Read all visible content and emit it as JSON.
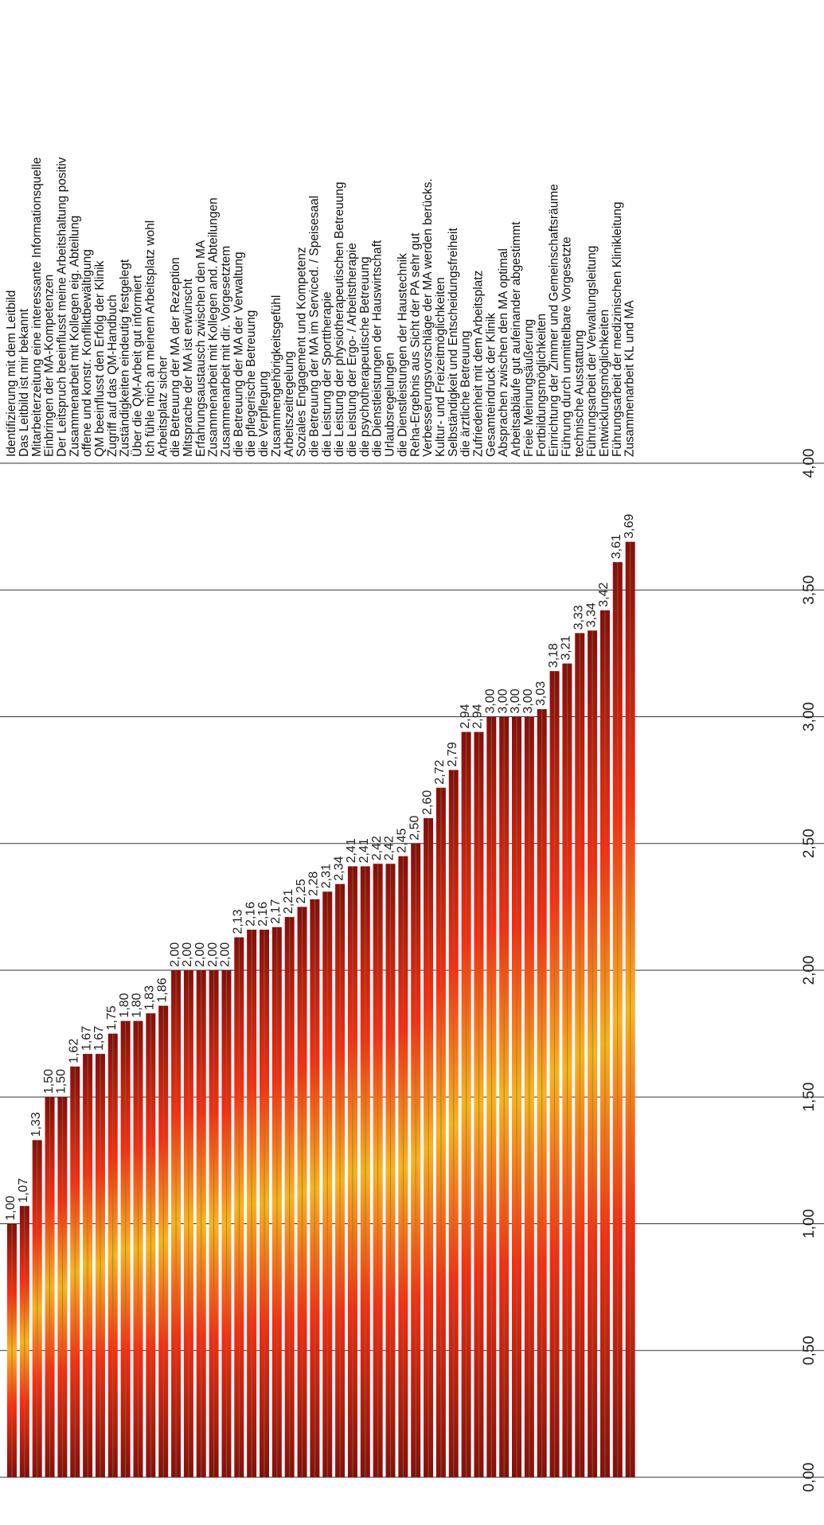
{
  "chart_data": {
    "type": "bar",
    "orientation": "horizontal",
    "xlim": [
      0,
      4
    ],
    "ticks": [
      "0,00",
      "0,50",
      "1,00",
      "1,50",
      "2,00",
      "2,50",
      "3,00",
      "3,50",
      "4,00"
    ],
    "grid": true,
    "categories": [
      "Identifizierung mit dem Leitbild",
      "Das Leitbild ist mir bekannt",
      "Mitarbeiterzeitung eine interessante Informationsquelle",
      "Einbringen der MA-Kompetenzen",
      "Der Leitspruch beeinflusst meine Arbeitshaltung positiv",
      "Zusammenarbeit mit Kollegen eig. Abteilung",
      "offene und konstr. Konfliktbewältigung",
      "QM beeinflusst den Erfolg der Klinik",
      "Zugriff auf das QM-Handbuch",
      "Zuständigkeiten eindeutig festgelegt",
      "Über die QM-Arbeit gut informiert",
      "Ich fühle mich an meinem Arbeitsplatz wohl",
      "Arbeitsplatz sicher",
      "die Betreuung der MA der Rezeption",
      "Mitsprache der MA ist erwünscht",
      "Erfahrungsaustausch zwischen den MA",
      "Zusammenarbeit mit Kollegen and. Abteilungen",
      "Zusammenarbeit mit dir. Vorgesetztem",
      "die Betreuung der MA der Verwaltung",
      "die pflegerische Betreuung",
      "die Verpflegung",
      "Zusammengehörigkeitsgefühl",
      "Arbeitszeitregelung",
      "Soziales Engagement und Kompetenz",
      "die Betreuung der MA im Serviced. / Speisesaal",
      "die Leistung der Sporttherapie",
      "die Leistung der physiotherapeutischen Betreuung",
      "die Leistung der Ergo- / Arbeitstherapie",
      "die psychotherapeutische Betreuung",
      "die Dienstleistungen der Hauswirtschaft",
      "Urlaubsregelungen",
      "die Dienstleistungen der Haustechnik",
      "Reha-Ergebnis aus Sicht der PA sehr gut",
      "Verbesserungsvorschläge der MA werden berücks.",
      "Kultur- und Freizeitmöglichkeiten",
      "Selbständigkeit und Entscheidungsfreiheit",
      "die ärztliche Betreuung",
      "Zufriedenheit mit dem Arbeitsplatz",
      "Gesamteindruck der Klinik",
      "Absprachen zwischen den MA optimal",
      "Arbeitsabläufe gut aufeinander abgestimmt",
      "Freie Meinungsäußerung",
      "Fortbildungsmöglichkeiten",
      "Einrichtung der Zimmer und Gemeinschaftsräume",
      "Führung durch unmittelbare Vorgesetzte",
      "technische Ausstattung",
      "Führungsarbeit der Verwaltungsleitung",
      "Entwicklungsmöglichkeiten",
      "Führungsarbeit der medizinischen Klinikleitung",
      "Zusammenarbeit KL und MA"
    ],
    "values": [
      1.0,
      1.07,
      1.33,
      1.5,
      1.5,
      1.62,
      1.67,
      1.67,
      1.75,
      1.8,
      1.8,
      1.83,
      1.86,
      2.0,
      2.0,
      2.0,
      2.0,
      2.0,
      2.13,
      2.16,
      2.16,
      2.17,
      2.21,
      2.25,
      2.28,
      2.31,
      2.34,
      2.41,
      2.41,
      2.42,
      2.42,
      2.45,
      2.5,
      2.6,
      2.72,
      2.79,
      2.94,
      2.94,
      3.0,
      3.0,
      3.0,
      3.0,
      3.03,
      3.18,
      3.21,
      3.33,
      3.34,
      3.42,
      3.61,
      3.69
    ],
    "value_labels": [
      "1,00",
      "1,07",
      "1,33",
      "1,50",
      "1,50",
      "1,62",
      "1,67",
      "1,67",
      "1,75",
      "1,80",
      "1,80",
      "1,83",
      "1,86",
      "2,00",
      "2,00",
      "2,00",
      "2,00",
      "2,00",
      "2,13",
      "2,16",
      "2,16",
      "2,17",
      "2,21",
      "2,25",
      "2,28",
      "2,31",
      "2,34",
      "2,41",
      "2,41",
      "2,42",
      "2,42",
      "2,45",
      "2,50",
      "2,60",
      "2,72",
      "2,79",
      "2,94",
      "2,94",
      "3,00",
      "3,00",
      "3,00",
      "3,00",
      "3,03",
      "3,18",
      "3,21",
      "3,33",
      "3,34",
      "3,42",
      "3,61",
      "3,69"
    ],
    "colors": {
      "bar_edge": "#8a0c0c",
      "bar_mid": "#ff2a12",
      "bar_center": "#ffb020",
      "stripe": "#3c9a3c",
      "grid": "#333333"
    }
  }
}
